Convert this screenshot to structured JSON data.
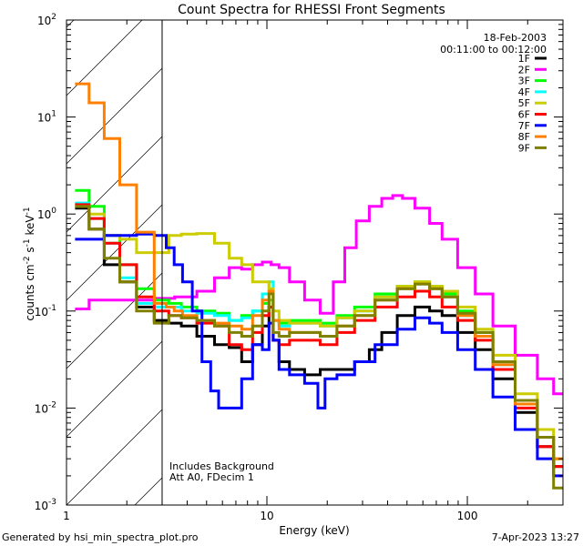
{
  "chart_data": {
    "type": "line",
    "title": "Count Spectra for RHESSI Front Segments",
    "xlabel": "Energy (keV)",
    "ylabel": "counts cm^-2 s^-1 keV^-1",
    "xscale": "log",
    "yscale": "log",
    "xlim": [
      1,
      300
    ],
    "ylim": [
      0.001,
      100
    ],
    "x_tick_labels": [
      {
        "value": 1,
        "label": "1"
      },
      {
        "value": 10,
        "label": "10"
      },
      {
        "value": 100,
        "label": "100"
      }
    ],
    "y_tick_labels": [
      {
        "value": 100,
        "base": "10",
        "exp": "2"
      },
      {
        "value": 10,
        "base": "10",
        "exp": "1"
      },
      {
        "value": 1,
        "base": "10",
        "exp": "0"
      },
      {
        "value": 0.1,
        "base": "10",
        "exp": "-1"
      },
      {
        "value": 0.01,
        "base": "10",
        "exp": "-2"
      },
      {
        "value": 0.001,
        "base": "10",
        "exp": "-3"
      }
    ],
    "hatched_region": {
      "x_from": 1,
      "x_to": 3
    },
    "legend_placement": "top-right",
    "date": "18-Feb-2003",
    "time_range": "00:11:00 to 00:12:00",
    "annotations": [
      "Includes Background",
      "Att A0, FDecim 1"
    ],
    "series": [
      {
        "name": "1F",
        "color": "#000000",
        "x": [
          1.2,
          1.4,
          1.7,
          2.0,
          2.5,
          3.0,
          3.5,
          4.0,
          5.0,
          6.0,
          7.0,
          8.0,
          9.0,
          10.0,
          10.5,
          11.0,
          12.0,
          14.0,
          17.0,
          20.0,
          25.0,
          30.0,
          35.0,
          40.0,
          50.0,
          60.0,
          70.0,
          80.0,
          100.0,
          120.0,
          150.0,
          200.0,
          250.0,
          290.0
        ],
        "values": [
          1.15,
          0.7,
          0.3,
          0.2,
          0.11,
          0.08,
          0.075,
          0.07,
          0.055,
          0.045,
          0.042,
          0.03,
          0.045,
          0.07,
          0.11,
          0.05,
          0.03,
          0.025,
          0.022,
          0.025,
          0.025,
          0.03,
          0.04,
          0.06,
          0.09,
          0.11,
          0.1,
          0.09,
          0.06,
          0.04,
          0.02,
          0.009,
          0.004,
          0.0025
        ]
      },
      {
        "name": "2F",
        "color": "#ff00ff",
        "x": [
          1.2,
          1.4,
          1.7,
          2.0,
          2.5,
          3.0,
          4.0,
          5.0,
          6.0,
          7.0,
          8.0,
          9.0,
          10.0,
          11.0,
          12.0,
          14.0,
          17.0,
          20.0,
          23.0,
          26.0,
          30.0,
          35.0,
          40.0,
          45.0,
          50.0,
          60.0,
          70.0,
          80.0,
          100.0,
          120.0,
          150.0,
          200.0,
          250.0,
          290.0
        ],
        "values": [
          0.105,
          0.13,
          0.13,
          0.13,
          0.13,
          0.135,
          0.14,
          0.16,
          0.22,
          0.28,
          0.27,
          0.3,
          0.32,
          0.3,
          0.28,
          0.2,
          0.13,
          0.095,
          0.2,
          0.45,
          0.85,
          1.2,
          1.45,
          1.55,
          1.45,
          1.15,
          0.8,
          0.55,
          0.28,
          0.15,
          0.07,
          0.035,
          0.02,
          0.014
        ]
      },
      {
        "name": "3F",
        "color": "#00ff00",
        "x": [
          1.2,
          1.4,
          1.7,
          2.0,
          2.5,
          3.0,
          3.5,
          4.0,
          5.0,
          6.0,
          7.0,
          8.0,
          9.0,
          10.0,
          10.5,
          11.0,
          12.0,
          14.0,
          17.0,
          20.0,
          25.0,
          30.0,
          40.0,
          50.0,
          60.0,
          70.0,
          80.0,
          100.0,
          120.0,
          150.0,
          200.0,
          250.0,
          290.0
        ],
        "values": [
          1.75,
          1.2,
          0.6,
          0.3,
          0.17,
          0.13,
          0.12,
          0.11,
          0.1,
          0.095,
          0.08,
          0.09,
          0.1,
          0.12,
          0.13,
          0.08,
          0.075,
          0.08,
          0.08,
          0.075,
          0.09,
          0.11,
          0.15,
          0.18,
          0.2,
          0.18,
          0.15,
          0.1,
          0.06,
          0.03,
          0.012,
          0.005,
          0.003
        ]
      },
      {
        "name": "4F",
        "color": "#00ffff",
        "x": [
          1.2,
          1.4,
          1.7,
          2.0,
          2.5,
          3.0,
          3.5,
          4.0,
          5.0,
          6.0,
          7.0,
          8.0,
          9.0,
          10.0,
          10.5,
          11.0,
          12.0,
          14.0,
          17.0,
          20.0,
          25.0,
          30.0,
          40.0,
          50.0,
          60.0,
          70.0,
          80.0,
          100.0,
          120.0,
          150.0,
          200.0,
          250.0,
          290.0
        ],
        "values": [
          1.3,
          0.9,
          0.5,
          0.22,
          0.12,
          0.11,
          0.11,
          0.1,
          0.095,
          0.09,
          0.08,
          0.085,
          0.1,
          0.15,
          0.2,
          0.08,
          0.07,
          0.075,
          0.075,
          0.07,
          0.085,
          0.1,
          0.14,
          0.17,
          0.19,
          0.17,
          0.14,
          0.09,
          0.055,
          0.028,
          0.011,
          0.005,
          0.003
        ]
      },
      {
        "name": "5F",
        "color": "#cccc00",
        "x": [
          1.2,
          1.4,
          1.7,
          2.0,
          2.5,
          3.0,
          3.5,
          4.0,
          5.0,
          6.0,
          7.0,
          8.0,
          9.0,
          10.0,
          10.5,
          11.0,
          12.0,
          14.0,
          17.0,
          20.0,
          25.0,
          30.0,
          40.0,
          50.0,
          60.0,
          70.0,
          80.0,
          100.0,
          120.0,
          150.0,
          200.0,
          250.0,
          290.0
        ],
        "values": [
          1.2,
          1.0,
          0.6,
          0.55,
          0.4,
          0.4,
          0.6,
          0.62,
          0.63,
          0.5,
          0.35,
          0.3,
          0.2,
          0.2,
          0.17,
          0.1,
          0.08,
          0.075,
          0.075,
          0.07,
          0.085,
          0.1,
          0.14,
          0.18,
          0.2,
          0.18,
          0.16,
          0.11,
          0.065,
          0.035,
          0.014,
          0.006,
          0.003
        ]
      },
      {
        "name": "6F",
        "color": "#ff0000",
        "x": [
          1.2,
          1.4,
          1.7,
          2.0,
          2.5,
          3.0,
          3.5,
          4.0,
          5.0,
          6.0,
          7.0,
          8.0,
          9.0,
          10.0,
          10.5,
          11.0,
          12.0,
          14.0,
          17.0,
          20.0,
          25.0,
          30.0,
          40.0,
          50.0,
          60.0,
          70.0,
          80.0,
          100.0,
          120.0,
          150.0,
          200.0,
          250.0,
          290.0
        ],
        "values": [
          1.25,
          0.9,
          0.5,
          0.3,
          0.14,
          0.1,
          0.09,
          0.085,
          0.075,
          0.07,
          0.045,
          0.04,
          0.06,
          0.09,
          0.11,
          0.05,
          0.045,
          0.05,
          0.05,
          0.045,
          0.06,
          0.08,
          0.11,
          0.14,
          0.16,
          0.14,
          0.11,
          0.08,
          0.05,
          0.025,
          0.01,
          0.004,
          0.0025
        ]
      },
      {
        "name": "7F",
        "color": "#0000ff",
        "x": [
          1.2,
          1.4,
          1.7,
          2.0,
          2.5,
          3.0,
          3.3,
          3.6,
          4.0,
          4.5,
          5.0,
          5.5,
          6.0,
          7.0,
          8.0,
          9.0,
          10.0,
          10.5,
          11.0,
          12.0,
          14.0,
          17.0,
          19.0,
          20.0,
          25.0,
          30.0,
          40.0,
          50.0,
          60.0,
          70.0,
          80.0,
          100.0,
          120.0,
          150.0,
          200.0,
          250.0,
          290.0
        ],
        "values": [
          0.55,
          0.55,
          0.6,
          0.6,
          0.62,
          0.6,
          0.45,
          0.3,
          0.2,
          0.1,
          0.03,
          0.015,
          0.01,
          0.01,
          0.02,
          0.045,
          0.04,
          0.075,
          0.05,
          0.025,
          0.022,
          0.018,
          0.01,
          0.02,
          0.022,
          0.03,
          0.045,
          0.065,
          0.085,
          0.075,
          0.06,
          0.04,
          0.025,
          0.013,
          0.006,
          0.003,
          0.002
        ]
      },
      {
        "name": "8F",
        "color": "#ff8000",
        "x": [
          1.2,
          1.4,
          1.7,
          2.0,
          2.5,
          3.0,
          3.3,
          3.6,
          4.0,
          5.0,
          6.0,
          7.0,
          8.0,
          9.0,
          10.0,
          10.5,
          11.0,
          12.0,
          14.0,
          17.0,
          20.0,
          25.0,
          30.0,
          40.0,
          50.0,
          60.0,
          70.0,
          80.0,
          100.0,
          120.0,
          150.0,
          200.0,
          250.0,
          290.0
        ],
        "values": [
          22.0,
          14.0,
          6.0,
          2.0,
          0.65,
          0.12,
          0.11,
          0.1,
          0.09,
          0.08,
          0.075,
          0.07,
          0.065,
          0.09,
          0.13,
          0.16,
          0.08,
          0.065,
          0.06,
          0.06,
          0.055,
          0.07,
          0.09,
          0.13,
          0.17,
          0.19,
          0.17,
          0.14,
          0.09,
          0.055,
          0.028,
          0.011,
          0.005,
          0.003
        ]
      },
      {
        "name": "9F",
        "color": "#808000",
        "x": [
          1.2,
          1.4,
          1.7,
          2.0,
          2.5,
          3.0,
          3.5,
          4.0,
          5.0,
          6.0,
          7.0,
          8.0,
          9.0,
          10.0,
          10.5,
          11.0,
          12.0,
          14.0,
          17.0,
          20.0,
          25.0,
          30.0,
          40.0,
          50.0,
          60.0,
          70.0,
          80.0,
          100.0,
          120.0,
          150.0,
          200.0,
          250.0,
          290.0
        ],
        "values": [
          1.2,
          0.7,
          0.35,
          0.2,
          0.1,
          0.075,
          0.09,
          0.085,
          0.08,
          0.07,
          0.06,
          0.055,
          0.07,
          0.1,
          0.15,
          0.06,
          0.055,
          0.06,
          0.06,
          0.055,
          0.07,
          0.09,
          0.13,
          0.17,
          0.19,
          0.17,
          0.14,
          0.095,
          0.06,
          0.03,
          0.012,
          0.005,
          0.0015
        ]
      }
    ]
  },
  "footer": {
    "generated_by": "Generated by hsi_min_spectra_plot.pro",
    "timestamp": "7-Apr-2023 13:27"
  }
}
